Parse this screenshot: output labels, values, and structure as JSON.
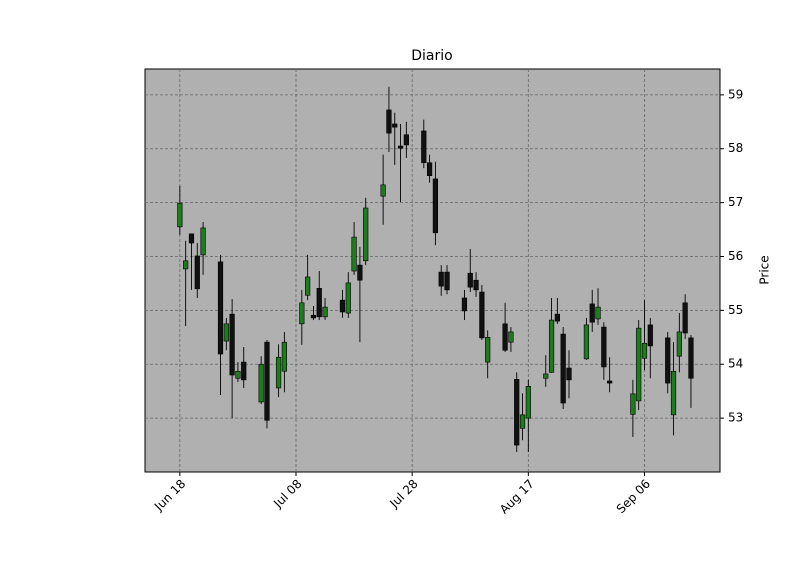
{
  "chart_data": {
    "type": "candlestick",
    "title": "Diario",
    "y_label": "Price",
    "x": [
      "06-18",
      "06-19",
      "06-20",
      "06-21",
      "06-22",
      "06-25",
      "06-26",
      "06-27",
      "06-28",
      "06-29",
      "07-02",
      "07-03",
      "07-05",
      "07-06",
      "07-09",
      "07-10",
      "07-11",
      "07-12",
      "07-13",
      "07-16",
      "07-17",
      "07-18",
      "07-19",
      "07-20",
      "07-23",
      "07-24",
      "07-25",
      "07-26",
      "07-27",
      "07-30",
      "07-31",
      "08-01",
      "08-02",
      "08-03",
      "08-06",
      "08-07",
      "08-08",
      "08-09",
      "08-10",
      "08-13",
      "08-14",
      "08-15",
      "08-16",
      "08-17",
      "08-20",
      "08-21",
      "08-22",
      "08-23",
      "08-24",
      "08-27",
      "08-28",
      "08-29",
      "08-30",
      "08-31",
      "09-04",
      "09-05",
      "09-06",
      "09-07",
      "09-10",
      "09-11",
      "09-12",
      "09-13",
      "09-14"
    ],
    "open": [
      56.55,
      55.77,
      56.42,
      56.01,
      56.03,
      55.9,
      54.43,
      54.93,
      53.74,
      54.04,
      53.3,
      54.41,
      53.56,
      53.87,
      54.75,
      55.28,
      54.91,
      55.41,
      54.88,
      55.19,
      54.95,
      55.73,
      55.84,
      55.92,
      57.12,
      58.72,
      58.46,
      58.05,
      58.26,
      58.33,
      57.74,
      57.44,
      55.71,
      55.71,
      55.23,
      55.69,
      55.56,
      55.34,
      54.04,
      54.75,
      54.41,
      53.72,
      52.81,
      53.0,
      53.74,
      53.85,
      54.93,
      54.56,
      53.93,
      54.1,
      55.12,
      54.84,
      54.69,
      53.69,
      53.07,
      53.32,
      54.11,
      54.73,
      54.49,
      53.06,
      54.15,
      55.14,
      54.49
    ],
    "high": [
      57.31,
      56.29,
      56.42,
      56.25,
      56.64,
      56.03,
      54.86,
      55.21,
      54.04,
      54.32,
      54.15,
      54.45,
      54.37,
      54.6,
      55.38,
      56.03,
      55.08,
      55.73,
      55.23,
      55.38,
      55.71,
      56.64,
      56.18,
      57.09,
      57.89,
      59.15,
      58.67,
      58.46,
      58.5,
      58.54,
      57.89,
      57.76,
      55.84,
      55.84,
      55.38,
      56.14,
      55.71,
      55.47,
      54.63,
      55.14,
      54.69,
      53.85,
      53.46,
      53.71,
      54.17,
      55.23,
      55.23,
      54.69,
      54.26,
      54.86,
      55.38,
      55.41,
      54.78,
      54.13,
      53.71,
      54.82,
      55.19,
      54.86,
      54.6,
      54.41,
      54.95,
      55.3,
      54.54
    ],
    "low": [
      56.4,
      54.71,
      55.38,
      55.23,
      55.66,
      53.43,
      54.26,
      53.0,
      53.67,
      53.56,
      53.26,
      52.81,
      53.39,
      53.48,
      54.36,
      55.19,
      54.82,
      54.82,
      54.82,
      54.86,
      54.86,
      55.66,
      54.41,
      55.84,
      56.59,
      57.94,
      57.7,
      57.01,
      57.83,
      57.64,
      57.37,
      56.21,
      55.27,
      55.3,
      54.82,
      55.34,
      55.25,
      54.45,
      53.74,
      54.23,
      54.23,
      52.37,
      52.59,
      52.37,
      53.58,
      53.84,
      54.75,
      53.17,
      53.37,
      54.08,
      54.6,
      54.73,
      53.71,
      53.48,
      52.65,
      53.15,
      53.89,
      53.74,
      53.46,
      52.68,
      53.85,
      54.47,
      53.19
    ],
    "close": [
      56.99,
      55.92,
      56.25,
      55.4,
      56.53,
      54.19,
      54.75,
      53.8,
      53.87,
      53.71,
      54.0,
      52.96,
      54.13,
      54.41,
      55.14,
      55.62,
      54.86,
      54.88,
      55.06,
      54.97,
      55.51,
      56.36,
      55.56,
      56.9,
      57.33,
      58.29,
      58.4,
      58.01,
      58.07,
      57.74,
      57.5,
      56.44,
      55.45,
      55.38,
      54.99,
      55.43,
      55.38,
      54.49,
      54.5,
      54.26,
      54.6,
      52.5,
      53.06,
      53.59,
      53.82,
      54.82,
      54.8,
      53.28,
      53.71,
      54.73,
      54.78,
      55.06,
      53.95,
      53.65,
      53.45,
      54.67,
      54.39,
      54.34,
      53.65,
      53.87,
      54.6,
      54.58,
      53.74
    ],
    "up_color": "#1e7b1e",
    "down_color": "#111111",
    "background": "#b0b0b0",
    "xlim": [
      "06-12",
      "09-19"
    ],
    "xticks": [
      {
        "value": "06-18",
        "label": "Jun 18"
      },
      {
        "value": "07-08",
        "label": "Jul 08"
      },
      {
        "value": "07-28",
        "label": "Jul 28"
      },
      {
        "value": "08-17",
        "label": "Aug 17"
      },
      {
        "value": "09-06",
        "label": "Sep 06"
      }
    ],
    "ylim": [
      52.0,
      59.48
    ],
    "yticks": [
      53,
      54,
      55,
      56,
      57,
      58,
      59
    ],
    "grid": true
  }
}
